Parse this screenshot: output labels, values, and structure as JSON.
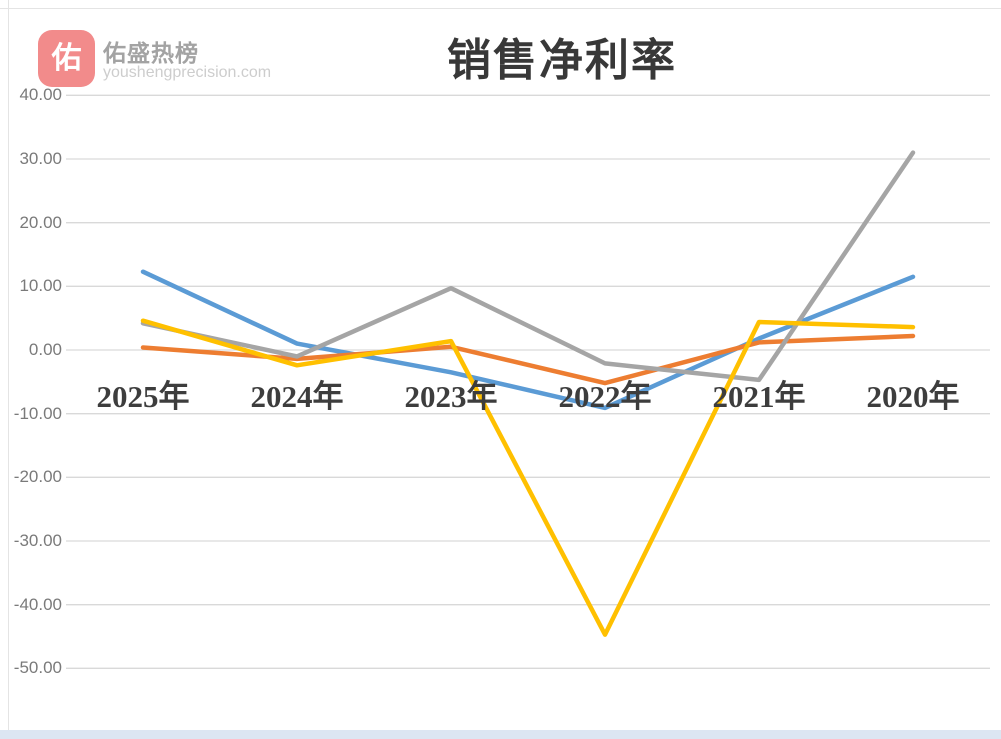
{
  "header": {
    "logo_char": "佑",
    "logo_color": "#F28B8B",
    "brand_name": "佑盛热榜",
    "brand_url": "youshengprecision.com"
  },
  "chart_data": {
    "type": "line",
    "title": "销售净利率",
    "categories": [
      "2025年",
      "2024年",
      "2023年",
      "2022年",
      "2021年",
      "2020年"
    ],
    "series": [
      {
        "name": "blue",
        "color": "#5B9BD5",
        "values": [
          12.3,
          1.0,
          -3.5,
          -9.1,
          1.8,
          11.5
        ]
      },
      {
        "name": "orange",
        "color": "#ED7D31",
        "values": [
          0.4,
          -1.4,
          0.5,
          -5.2,
          1.2,
          2.2
        ]
      },
      {
        "name": "gray",
        "color": "#A5A5A5",
        "values": [
          4.2,
          -1.0,
          9.7,
          -2.1,
          -4.7,
          31.0
        ]
      },
      {
        "name": "yellow",
        "color": "#FFC000",
        "values": [
          4.6,
          -2.4,
          1.4,
          -44.7,
          4.4,
          3.6
        ]
      }
    ],
    "y_ticks": [
      "40.00",
      "30.00",
      "20.00",
      "10.00",
      "0.00",
      "-10.00",
      "-20.00",
      "-30.00",
      "-40.00",
      "-50.00"
    ],
    "ylim": [
      -50,
      40
    ],
    "grid": true,
    "legend": false,
    "grid_color": "#d9d9d9"
  }
}
